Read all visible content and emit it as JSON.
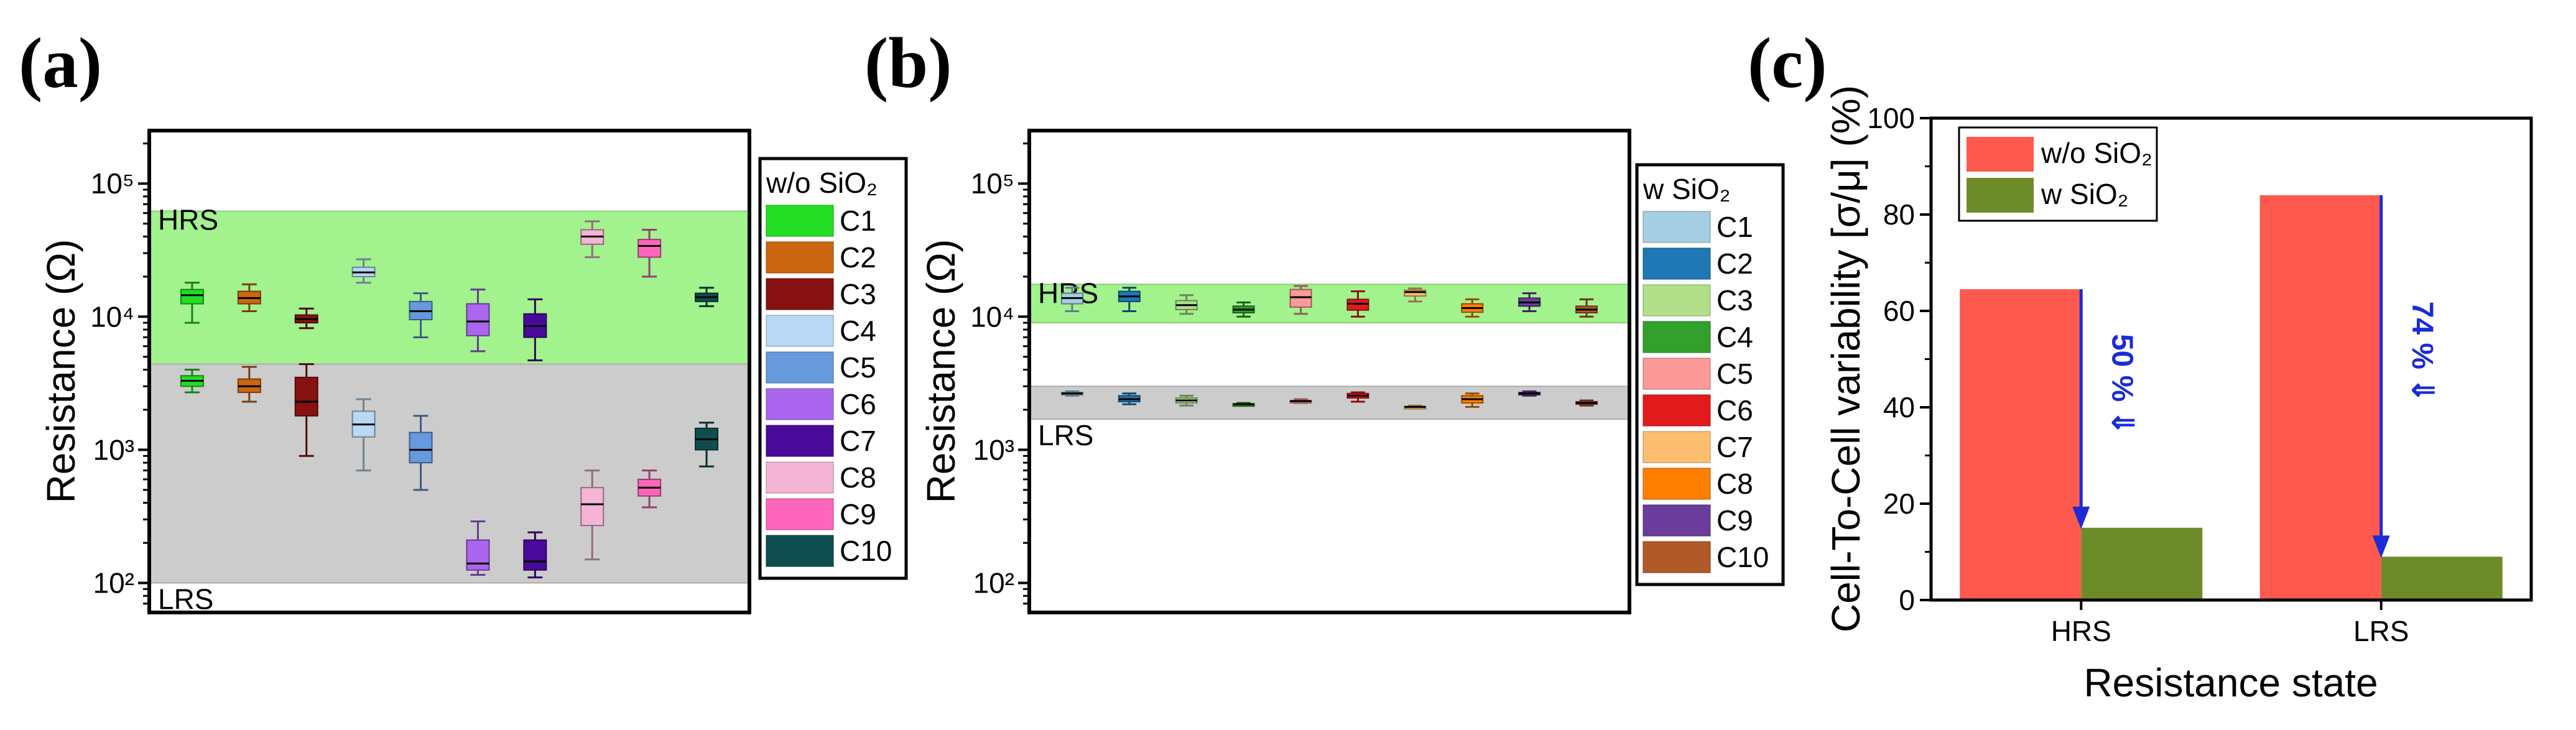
{
  "panel_labels": [
    "(a)",
    "(b)",
    "(c)"
  ],
  "chart_data": [
    {
      "type": "box",
      "panel": "(a)",
      "ylabel": "Resistance (Ω)",
      "yscale": "log",
      "ylim": [
        60,
        250000
      ],
      "yticks": [
        {
          "v": 100,
          "l": "10²"
        },
        {
          "v": 1000,
          "l": "10³"
        },
        {
          "v": 10000,
          "l": "10⁴"
        },
        {
          "v": 100000,
          "l": "10⁵"
        }
      ],
      "bands": [
        {
          "name": "HRS",
          "label": "HRS",
          "lo": 4400,
          "hi": 62000,
          "color": "#a2f28e"
        },
        {
          "name": "LRS",
          "label": "LRS",
          "lo": 100,
          "hi": 4400,
          "color": "#cccccc"
        }
      ],
      "legend_title": "w/o SiO₂",
      "legend": [
        {
          "name": "C1",
          "color": "#22dd22"
        },
        {
          "name": "C2",
          "color": "#cc6611"
        },
        {
          "name": "C3",
          "color": "#881111"
        },
        {
          "name": "C4",
          "color": "#b8d8f4"
        },
        {
          "name": "C5",
          "color": "#6699dd"
        },
        {
          "name": "C6",
          "color": "#aa66ee"
        },
        {
          "name": "C7",
          "color": "#4a0a99"
        },
        {
          "name": "C8",
          "color": "#f4b4d4"
        },
        {
          "name": "C9",
          "color": "#ff66bb"
        },
        {
          "name": "C10",
          "color": "#0e4e4e"
        }
      ],
      "series": [
        {
          "name": "C1",
          "state": "HRS",
          "min": 9000,
          "q1": 12500,
          "median": 14500,
          "q3": 16000,
          "max": 18000
        },
        {
          "name": "C1",
          "state": "LRS",
          "min": 2700,
          "q1": 3000,
          "median": 3300,
          "q3": 3600,
          "max": 4000
        },
        {
          "name": "C2",
          "state": "HRS",
          "min": 11000,
          "q1": 12500,
          "median": 13800,
          "q3": 15500,
          "max": 17500
        },
        {
          "name": "C2",
          "state": "LRS",
          "min": 2300,
          "q1": 2700,
          "median": 3000,
          "q3": 3400,
          "max": 4200
        },
        {
          "name": "C3",
          "state": "HRS",
          "min": 8200,
          "q1": 9000,
          "median": 9600,
          "q3": 10300,
          "max": 11500
        },
        {
          "name": "C3",
          "state": "LRS",
          "min": 900,
          "q1": 1800,
          "median": 2300,
          "q3": 3500,
          "max": 4400
        },
        {
          "name": "C4",
          "state": "HRS",
          "min": 18000,
          "q1": 20000,
          "median": 21500,
          "q3": 23500,
          "max": 27000
        },
        {
          "name": "C4",
          "state": "LRS",
          "min": 700,
          "q1": 1250,
          "median": 1550,
          "q3": 1950,
          "max": 2400
        },
        {
          "name": "C5",
          "state": "HRS",
          "min": 7000,
          "q1": 9500,
          "median": 11000,
          "q3": 13000,
          "max": 15000
        },
        {
          "name": "C5",
          "state": "LRS",
          "min": 500,
          "q1": 800,
          "median": 1000,
          "q3": 1350,
          "max": 1800
        },
        {
          "name": "C6",
          "state": "HRS",
          "min": 5500,
          "q1": 7200,
          "median": 9200,
          "q3": 12500,
          "max": 16000
        },
        {
          "name": "C6",
          "state": "LRS",
          "min": 115,
          "q1": 125,
          "median": 140,
          "q3": 210,
          "max": 290
        },
        {
          "name": "C7",
          "state": "HRS",
          "min": 4700,
          "q1": 7000,
          "median": 8500,
          "q3": 10500,
          "max": 13500
        },
        {
          "name": "C7",
          "state": "LRS",
          "min": 110,
          "q1": 125,
          "median": 145,
          "q3": 210,
          "max": 240
        },
        {
          "name": "C8",
          "state": "HRS",
          "min": 28000,
          "q1": 35000,
          "median": 40000,
          "q3": 45000,
          "max": 52000
        },
        {
          "name": "C8",
          "state": "LRS",
          "min": 150,
          "q1": 270,
          "median": 390,
          "q3": 520,
          "max": 700
        },
        {
          "name": "C9",
          "state": "HRS",
          "min": 20000,
          "q1": 28000,
          "median": 34000,
          "q3": 38000,
          "max": 45000
        },
        {
          "name": "C9",
          "state": "LRS",
          "min": 370,
          "q1": 450,
          "median": 520,
          "q3": 600,
          "max": 700
        },
        {
          "name": "C10",
          "state": "HRS",
          "min": 12000,
          "q1": 13000,
          "median": 14000,
          "q3": 15000,
          "max": 16500
        },
        {
          "name": "C10",
          "state": "LRS",
          "min": 750,
          "q1": 1000,
          "median": 1200,
          "q3": 1450,
          "max": 1600
        }
      ]
    },
    {
      "type": "box",
      "panel": "(b)",
      "ylabel": "Resistance (Ω)",
      "yscale": "log",
      "ylim": [
        60,
        250000
      ],
      "yticks": [
        {
          "v": 100,
          "l": "10²"
        },
        {
          "v": 1000,
          "l": "10³"
        },
        {
          "v": 10000,
          "l": "10⁴"
        },
        {
          "v": 100000,
          "l": "10⁵"
        }
      ],
      "bands": [
        {
          "name": "HRS",
          "label": "HRS",
          "lo": 9000,
          "hi": 17500,
          "color": "#a2f28e"
        },
        {
          "name": "LRS",
          "label": "LRS",
          "lo": 1700,
          "hi": 3000,
          "color": "#cccccc"
        }
      ],
      "legend_title": "w SiO₂",
      "legend": [
        {
          "name": "C1",
          "color": "#a6cee3"
        },
        {
          "name": "C2",
          "color": "#1f78b4"
        },
        {
          "name": "C3",
          "color": "#b2df8a"
        },
        {
          "name": "C4",
          "color": "#33a02c"
        },
        {
          "name": "C5",
          "color": "#fb9a99"
        },
        {
          "name": "C6",
          "color": "#e31a1c"
        },
        {
          "name": "C7",
          "color": "#fdbf6f"
        },
        {
          "name": "C8",
          "color": "#ff7f00"
        },
        {
          "name": "C9",
          "color": "#6a3d9a"
        },
        {
          "name": "C10",
          "color": "#b15928"
        }
      ],
      "series": [
        {
          "name": "C1",
          "state": "HRS",
          "min": 11000,
          "q1": 12500,
          "median": 13800,
          "q3": 15000,
          "max": 16500
        },
        {
          "name": "C1",
          "state": "LRS",
          "min": 2550,
          "q1": 2600,
          "median": 2650,
          "q3": 2700,
          "max": 2750
        },
        {
          "name": "C2",
          "state": "HRS",
          "min": 11000,
          "q1": 13000,
          "median": 14200,
          "q3": 15500,
          "max": 16500
        },
        {
          "name": "C2",
          "state": "LRS",
          "min": 2200,
          "q1": 2300,
          "median": 2400,
          "q3": 2550,
          "max": 2650
        },
        {
          "name": "C3",
          "state": "HRS",
          "min": 10500,
          "q1": 11300,
          "median": 12200,
          "q3": 13200,
          "max": 14500
        },
        {
          "name": "C3",
          "state": "LRS",
          "min": 2150,
          "q1": 2250,
          "median": 2350,
          "q3": 2450,
          "max": 2550
        },
        {
          "name": "C4",
          "state": "HRS",
          "min": 10000,
          "q1": 10700,
          "median": 11300,
          "q3": 12000,
          "max": 12800
        },
        {
          "name": "C4",
          "state": "LRS",
          "min": 2150,
          "q1": 2180,
          "median": 2200,
          "q3": 2220,
          "max": 2250
        },
        {
          "name": "C5",
          "state": "HRS",
          "min": 10500,
          "q1": 11800,
          "median": 14000,
          "q3": 16000,
          "max": 17000
        },
        {
          "name": "C5",
          "state": "LRS",
          "min": 2250,
          "q1": 2300,
          "median": 2320,
          "q3": 2350,
          "max": 2400
        },
        {
          "name": "C6",
          "state": "HRS",
          "min": 10000,
          "q1": 11200,
          "median": 12500,
          "q3": 13500,
          "max": 15500
        },
        {
          "name": "C6",
          "state": "LRS",
          "min": 2300,
          "q1": 2450,
          "median": 2550,
          "q3": 2650,
          "max": 2700
        },
        {
          "name": "C7",
          "state": "HRS",
          "min": 13000,
          "q1": 14300,
          "median": 15300,
          "q3": 15800,
          "max": 16300
        },
        {
          "name": "C7",
          "state": "LRS",
          "min": 2050,
          "q1": 2080,
          "median": 2100,
          "q3": 2120,
          "max": 2150
        },
        {
          "name": "C8",
          "state": "HRS",
          "min": 10000,
          "q1": 10800,
          "median": 11600,
          "q3": 12500,
          "max": 13500
        },
        {
          "name": "C8",
          "state": "LRS",
          "min": 2100,
          "q1": 2250,
          "median": 2400,
          "q3": 2550,
          "max": 2650
        },
        {
          "name": "C9",
          "state": "HRS",
          "min": 11000,
          "q1": 12000,
          "median": 12800,
          "q3": 13800,
          "max": 15000
        },
        {
          "name": "C9",
          "state": "LRS",
          "min": 2550,
          "q1": 2600,
          "median": 2650,
          "q3": 2700,
          "max": 2750
        },
        {
          "name": "C10",
          "state": "HRS",
          "min": 10000,
          "q1": 10700,
          "median": 11300,
          "q3": 12000,
          "max": 13500
        },
        {
          "name": "C10",
          "state": "LRS",
          "min": 2150,
          "q1": 2200,
          "median": 2250,
          "q3": 2300,
          "max": 2350
        }
      ]
    },
    {
      "type": "bar",
      "panel": "(c)",
      "title": "",
      "xlabel": "Resistance state",
      "ylabel": "Cell-To-Cell variability [σ/μ] (%)",
      "categories": [
        "HRS",
        "LRS"
      ],
      "ylim": [
        0,
        100
      ],
      "yticks": [
        0,
        20,
        40,
        60,
        80,
        100
      ],
      "legend_position": "top-left",
      "series": [
        {
          "name": "w/o SiO₂",
          "color": "#fe594e",
          "values": [
            64.5,
            84
          ]
        },
        {
          "name": "w SiO₂",
          "color": "#6e8b2a",
          "values": [
            15,
            9
          ]
        }
      ],
      "annotations": [
        {
          "category": "HRS",
          "text": "50 % ⇓",
          "from": 64.5,
          "to": 15
        },
        {
          "category": "LRS",
          "text": "74 % ⇓",
          "from": 84,
          "to": 9
        }
      ]
    }
  ]
}
